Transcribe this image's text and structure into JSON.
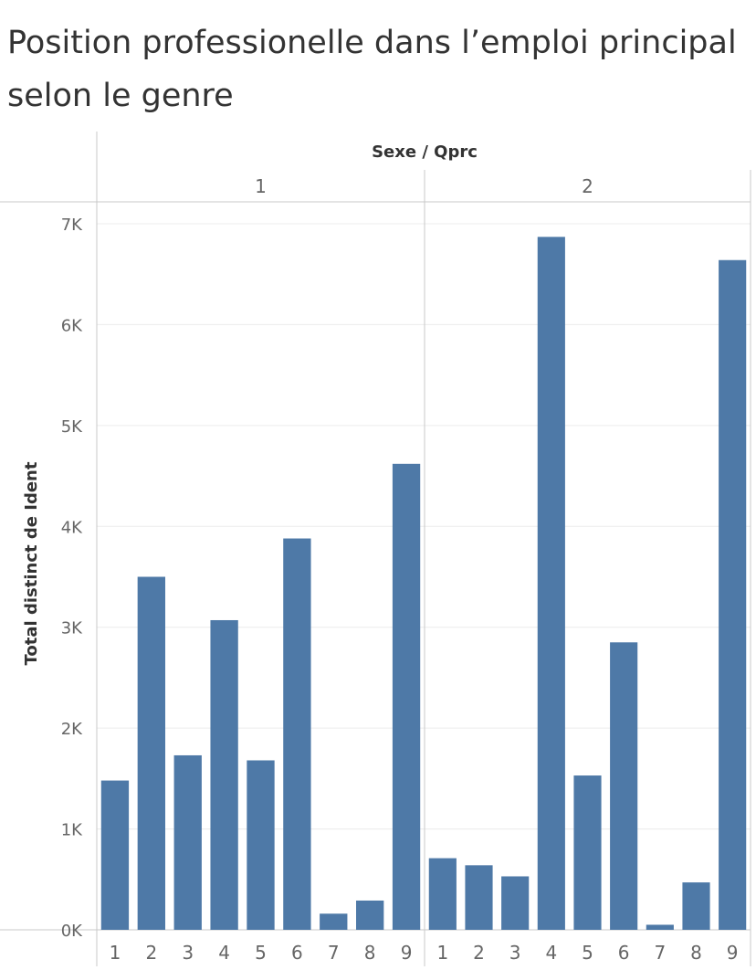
{
  "chart_data": {
    "type": "bar",
    "title": "Position professionelle dans l’emploi principal selon le genre",
    "facet_label": "Sexe / Qprc",
    "ylabel": "Total distinct de Ident",
    "ylim": [
      0,
      7000
    ],
    "y_ticks": [
      0,
      1000,
      2000,
      3000,
      4000,
      5000,
      6000,
      7000
    ],
    "y_tick_labels": [
      "0K",
      "1K",
      "2K",
      "3K",
      "4K",
      "5K",
      "6K",
      "7K"
    ],
    "bar_color": "#4e79a7",
    "grid": true,
    "panes": [
      {
        "name": "1",
        "categories": [
          "1",
          "2",
          "3",
          "4",
          "5",
          "6",
          "7",
          "8",
          "9"
        ],
        "values": [
          1480,
          3500,
          1730,
          3070,
          1680,
          3880,
          160,
          290,
          4620
        ]
      },
      {
        "name": "2",
        "categories": [
          "1",
          "2",
          "3",
          "4",
          "5",
          "6",
          "7",
          "8",
          "9"
        ],
        "values": [
          710,
          640,
          530,
          6870,
          1530,
          2850,
          50,
          470,
          6640
        ]
      }
    ]
  }
}
